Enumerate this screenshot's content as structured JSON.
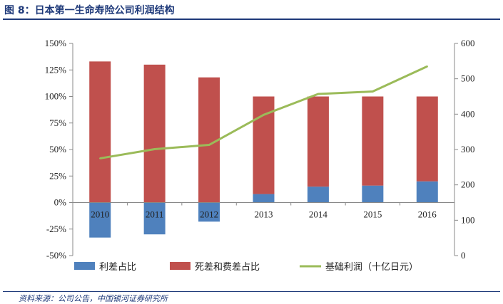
{
  "figure_title": "图 8：日本第一生命寿险公司利润结构",
  "source_note": "资料来源：公司公告，中国银河证券研究所",
  "colors": {
    "interest": "#4f81bd",
    "mortality": "#c0504d",
    "profit": "#9bbb59",
    "rule": "#1f3a7a"
  },
  "chart_data": {
    "type": "bar",
    "categories": [
      "2010",
      "2011",
      "2012",
      "2013",
      "2014",
      "2015",
      "2016"
    ],
    "series": [
      {
        "name": "利差占比",
        "kind": "bar",
        "axis": "left",
        "values": [
          -33,
          -30,
          -18,
          8,
          15,
          16,
          20
        ]
      },
      {
        "name": "死差和费差占比",
        "kind": "bar",
        "axis": "left",
        "values": [
          133,
          130,
          118,
          92,
          85,
          84,
          80
        ]
      },
      {
        "name": "基础利润（十亿日元）",
        "kind": "line",
        "axis": "right",
        "values": [
          275,
          301,
          313,
          398,
          457,
          464,
          535
        ]
      }
    ],
    "y_left": {
      "min": -50,
      "max": 150,
      "step": 25,
      "ticks": [
        "-50%",
        "-25%",
        "0%",
        "25%",
        "50%",
        "75%",
        "100%",
        "125%",
        "150%"
      ]
    },
    "y_right": {
      "min": 0,
      "max": 600,
      "step": 100,
      "ticks": [
        "0",
        "100",
        "200",
        "300",
        "400",
        "500",
        "600"
      ]
    },
    "stacked": true,
    "grid": false,
    "legend_position": "bottom"
  }
}
